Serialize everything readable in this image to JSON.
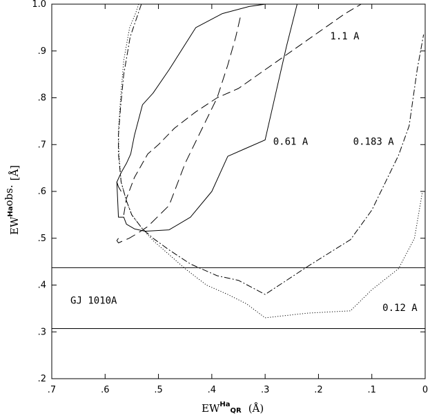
{
  "chart_data": {
    "type": "line",
    "xlim": [
      0.7,
      0.0
    ],
    "ylim": [
      0.2,
      1.0
    ],
    "x_ticks": [
      {
        "value": 0.7,
        "label": ".7"
      },
      {
        "value": 0.6,
        "label": ".6"
      },
      {
        "value": 0.5,
        "label": ".5"
      },
      {
        "value": 0.4,
        "label": ".4"
      },
      {
        "value": 0.3,
        "label": ".3"
      },
      {
        "value": 0.2,
        "label": ".2"
      },
      {
        "value": 0.1,
        "label": ".1"
      },
      {
        "value": 0.0,
        "label": "0"
      }
    ],
    "y_ticks": [
      {
        "value": 0.2,
        "label": ".2"
      },
      {
        "value": 0.3,
        "label": ".3"
      },
      {
        "value": 0.4,
        "label": ".4"
      },
      {
        "value": 0.5,
        "label": ".5"
      },
      {
        "value": 0.6,
        "label": ".6"
      },
      {
        "value": 0.7,
        "label": ".7"
      },
      {
        "value": 0.8,
        "label": ".8"
      },
      {
        "value": 0.9,
        "label": ".9"
      },
      {
        "value": 1.0,
        "label": "1.0"
      }
    ],
    "xlabel": {
      "main": "EW",
      "sup": "Ha",
      "sub": "QR",
      "unit": "(Å)"
    },
    "ylabel": {
      "main": "EW",
      "sup": "Ha",
      "sub": "obs.",
      "unit": "[Å]"
    },
    "hlines": [
      0.437,
      0.307
    ],
    "grid": false,
    "series": [
      {
        "name": "0.12 A",
        "dash": "dotted",
        "x": [
          0.537,
          0.543,
          0.554,
          0.565,
          0.571,
          0.575,
          0.574,
          0.57,
          0.56,
          0.55,
          0.53,
          0.51,
          0.485,
          0.45,
          0.41,
          0.37,
          0.335,
          0.3,
          0.22,
          0.14,
          0.1,
          0.05,
          0.02,
          0.005
        ],
        "y": [
          1.0,
          0.98,
          0.95,
          0.88,
          0.8,
          0.73,
          0.68,
          0.62,
          0.58,
          0.55,
          0.52,
          0.495,
          0.47,
          0.435,
          0.4,
          0.38,
          0.36,
          0.33,
          0.34,
          0.345,
          0.39,
          0.435,
          0.5,
          0.6
        ]
      },
      {
        "name": "0.183 A",
        "dash": "dashdot",
        "x": [
          0.532,
          0.538,
          0.553,
          0.565,
          0.571,
          0.575,
          0.575,
          0.57,
          0.56,
          0.55,
          0.53,
          0.51,
          0.48,
          0.44,
          0.39,
          0.35,
          0.3,
          0.22,
          0.14,
          0.1,
          0.05,
          0.03,
          0.015,
          0.003
        ],
        "y": [
          1.0,
          0.98,
          0.93,
          0.85,
          0.78,
          0.72,
          0.68,
          0.62,
          0.58,
          0.55,
          0.52,
          0.5,
          0.475,
          0.445,
          0.42,
          0.41,
          0.38,
          0.44,
          0.497,
          0.56,
          0.677,
          0.74,
          0.86,
          0.935
        ]
      },
      {
        "name": "1.1 A",
        "dash": "longdash",
        "x": [
          0.565,
          0.56,
          0.545,
          0.52,
          0.5,
          0.47,
          0.43,
          0.39,
          0.35,
          0.3,
          0.25,
          0.2,
          0.15,
          0.12
        ],
        "y": [
          0.55,
          0.585,
          0.63,
          0.68,
          0.7,
          0.735,
          0.77,
          0.8,
          0.82,
          0.86,
          0.9,
          0.94,
          0.98,
          1.0
        ]
      },
      {
        "name": "",
        "dash": "dashed",
        "x": [
          0.575,
          0.578,
          0.575,
          0.565,
          0.555,
          0.54,
          0.52,
          0.48,
          0.45,
          0.42,
          0.39,
          0.37,
          0.355,
          0.345
        ],
        "y": [
          0.5,
          0.495,
          0.49,
          0.495,
          0.5,
          0.51,
          0.525,
          0.57,
          0.66,
          0.73,
          0.8,
          0.87,
          0.93,
          0.98
        ]
      },
      {
        "name": "",
        "dash": "solid",
        "x": [
          0.57,
          0.575,
          0.578,
          0.57,
          0.56,
          0.552,
          0.545,
          0.53,
          0.51,
          0.48,
          0.43,
          0.38,
          0.33,
          0.3
        ],
        "y": [
          0.6,
          0.61,
          0.62,
          0.64,
          0.66,
          0.68,
          0.72,
          0.785,
          0.81,
          0.86,
          0.95,
          0.98,
          0.995,
          1.0
        ]
      },
      {
        "name": "0.61 A",
        "dash": "solid",
        "x": [
          0.578,
          0.575,
          0.565,
          0.56,
          0.545,
          0.525,
          0.48,
          0.44,
          0.4,
          0.37,
          0.34,
          0.3,
          0.28,
          0.26,
          0.24
        ],
        "y": [
          0.62,
          0.545,
          0.545,
          0.53,
          0.52,
          0.515,
          0.518,
          0.545,
          0.6,
          0.675,
          0.69,
          0.71,
          0.81,
          0.91,
          1.0
        ]
      }
    ],
    "annotations": [
      {
        "text": "1.1 A",
        "x": 0.178,
        "y": 0.925
      },
      {
        "text": "0.61 A",
        "x": 0.285,
        "y": 0.7
      },
      {
        "text": "0.183 A",
        "x": 0.135,
        "y": 0.7
      },
      {
        "text": "GJ 1010A",
        "x": 0.665,
        "y": 0.36
      },
      {
        "text": "0.12 A",
        "x": 0.08,
        "y": 0.345
      }
    ]
  }
}
